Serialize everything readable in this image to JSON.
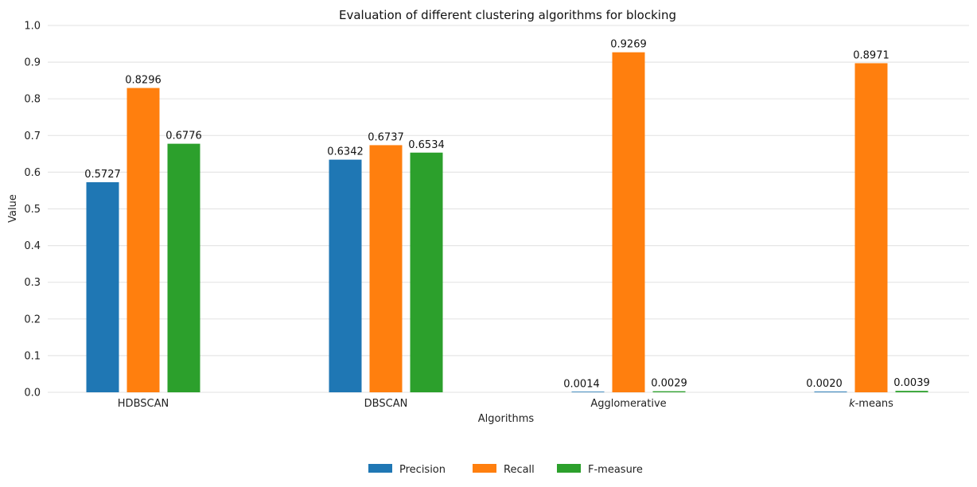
{
  "chart_data": {
    "type": "bar",
    "title": "Evaluation of different clustering algorithms for blocking",
    "xlabel": "Algorithms",
    "ylabel": "Value",
    "categories": [
      "HDBSCAN",
      "DBSCAN",
      "Agglomerative",
      "k-means"
    ],
    "ylim": [
      0,
      1.0
    ],
    "yticks": [
      "0.0",
      "0.1",
      "0.2",
      "0.3",
      "0.4",
      "0.5",
      "0.6",
      "0.7",
      "0.8",
      "0.9",
      "1.0"
    ],
    "grid": "horizontal",
    "legend_position": "bottom-center",
    "series": [
      {
        "name": "Precision",
        "color": "#1f77b4",
        "values": [
          0.5727,
          0.6342,
          0.0014,
          0.002
        ],
        "labels": [
          "0.5727",
          "0.6342",
          "0.0014",
          "0.0020"
        ]
      },
      {
        "name": "Recall",
        "color": "#ff7f0e",
        "values": [
          0.8296,
          0.6737,
          0.9269,
          0.8971
        ],
        "labels": [
          "0.8296",
          "0.6737",
          "0.9269",
          "0.8971"
        ]
      },
      {
        "name": "F-measure",
        "color": "#2ca02c",
        "values": [
          0.6776,
          0.6534,
          0.0029,
          0.0039
        ],
        "labels": [
          "0.6776",
          "0.6534",
          "0.0029",
          "0.0039"
        ]
      }
    ]
  }
}
